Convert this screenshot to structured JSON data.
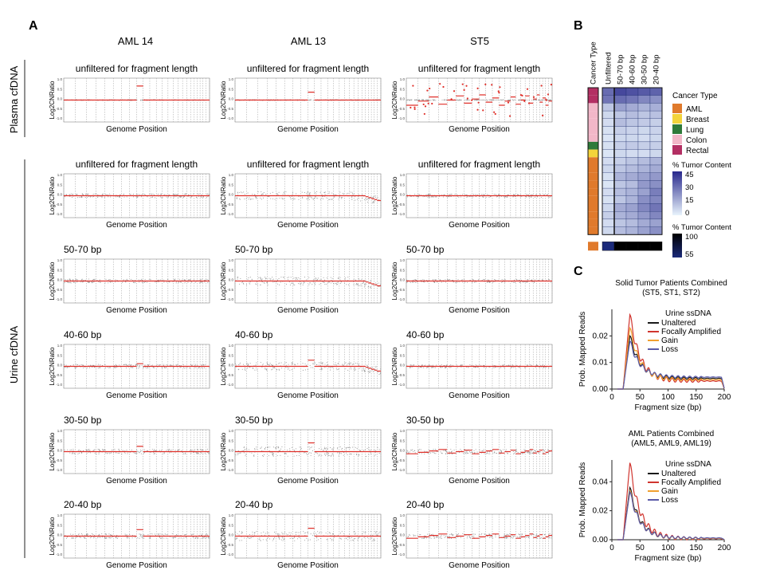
{
  "panel_labels": {
    "A": "A",
    "B": "B",
    "C": "C"
  },
  "panel_a": {
    "columns": [
      "AML 14",
      "AML 13",
      "ST5"
    ],
    "groups": {
      "plasma": "Plasma cfDNA",
      "urine": "Urine cfDNA"
    },
    "ylabel": "Log2CNRatio",
    "xlabel": "Genome Position",
    "yticks": [
      "1.0",
      "0.5",
      "0.0",
      "-0.5",
      "-1.0"
    ],
    "rows": [
      "unfiltered for fragment length",
      "unfiltered for fragment length",
      "50-70 bp",
      "40-60 bp",
      "30-50 bp",
      "20-40 bp"
    ]
  },
  "panel_b": {
    "columns": [
      "Cancer Type",
      "Unfiltered",
      "50-70 bp",
      "40-60 bp",
      "30-50 bp",
      "20-40 bp"
    ],
    "legend_cancer_title": "Cancer Type",
    "cancer_types": [
      {
        "name": "AML",
        "color": "#e07a2c"
      },
      {
        "name": "Breast",
        "color": "#f3d43b"
      },
      {
        "name": "Lung",
        "color": "#2f7a3a"
      },
      {
        "name": "Colon",
        "color": "#f2b7c8"
      },
      {
        "name": "Rectal",
        "color": "#b32f63"
      }
    ],
    "legend_tumor_title": "% Tumor Content",
    "tumor_ticks": [
      "45",
      "30",
      "15",
      "0"
    ],
    "legend_tumor2_title": "% Tumor Content",
    "tumor2_ticks": [
      "100",
      "55"
    ]
  },
  "chart_data": [
    {
      "type": "heatmap",
      "panel": "B",
      "x_categories": [
        "Unfiltered",
        "50-70 bp",
        "40-60 bp",
        "30-50 bp",
        "20-40 bp"
      ],
      "row_cancer_types": [
        "Rectal",
        "Rectal",
        "Colon",
        "Colon",
        "Colon",
        "Colon",
        "Colon",
        "Lung",
        "Breast",
        "AML",
        "AML",
        "AML",
        "AML",
        "AML",
        "AML",
        "AML",
        "AML",
        "AML",
        "AML"
      ],
      "values": [
        [
          30,
          38,
          36,
          34,
          32
        ],
        [
          28,
          30,
          28,
          24,
          22
        ],
        [
          10,
          18,
          16,
          14,
          15
        ],
        [
          6,
          10,
          12,
          10,
          11
        ],
        [
          5,
          12,
          10,
          9,
          8
        ],
        [
          4,
          8,
          7,
          6,
          7
        ],
        [
          3,
          6,
          6,
          5,
          6
        ],
        [
          4,
          8,
          9,
          8,
          8
        ],
        [
          3,
          6,
          5,
          5,
          6
        ],
        [
          5,
          8,
          10,
          12,
          14
        ],
        [
          6,
          10,
          12,
          14,
          16
        ],
        [
          4,
          14,
          16,
          18,
          20
        ],
        [
          3,
          10,
          12,
          20,
          22
        ],
        [
          5,
          12,
          14,
          18,
          26
        ],
        [
          4,
          10,
          14,
          22,
          24
        ],
        [
          6,
          16,
          18,
          24,
          28
        ],
        [
          8,
          14,
          16,
          20,
          24
        ],
        [
          5,
          10,
          12,
          16,
          18
        ],
        [
          6,
          12,
          14,
          18,
          22
        ]
      ],
      "aml_row_cancer_type": "AML",
      "aml_row_values": [
        70,
        100,
        100,
        100,
        100
      ],
      "zlim": [
        0,
        45
      ]
    },
    {
      "type": "line",
      "panel": "C",
      "title": "Solid Tumor Patients Combined",
      "subtitle": "(ST5, ST1, ST2)",
      "legend_title": "Urine ssDNA",
      "xlabel": "Fragment size (bp)",
      "ylabel": "Prob. Mapped Reads",
      "xlim": [
        0,
        200
      ],
      "ylim": [
        0,
        0.03
      ],
      "xticks": [
        0,
        50,
        100,
        150,
        200
      ],
      "yticks": [
        0.0,
        0.01,
        0.02
      ],
      "series": [
        {
          "name": "Unaltered",
          "color": "#1a1a1a",
          "peak": 0.02,
          "tail": 0.004
        },
        {
          "name": "Focally Amplified",
          "color": "#d0352f",
          "peak": 0.028,
          "tail": 0.003
        },
        {
          "name": "Gain",
          "color": "#f0a030",
          "peak": 0.023,
          "tail": 0.0035
        },
        {
          "name": "Loss",
          "color": "#5a5aa8",
          "peak": 0.018,
          "tail": 0.0045
        }
      ]
    },
    {
      "type": "line",
      "panel": "C",
      "title": "AML Patients Combined",
      "subtitle": "(AML5, AML9, AML19)",
      "legend_title": "Urine ssDNA",
      "xlabel": "Fragment size (bp)",
      "ylabel": "Prob. Mapped Reads",
      "xlim": [
        0,
        200
      ],
      "ylim": [
        0,
        0.055
      ],
      "xticks": [
        0,
        50,
        100,
        150,
        200
      ],
      "yticks": [
        0.0,
        0.02,
        0.04
      ],
      "series": [
        {
          "name": "Unaltered",
          "color": "#1a1a1a",
          "peak": 0.036,
          "tail": 0.001
        },
        {
          "name": "Focally Amplified",
          "color": "#d0352f",
          "peak": 0.053,
          "tail": 0.0008
        },
        {
          "name": "Gain",
          "color": "#f0a030",
          "peak": 0.034,
          "tail": 0.001
        },
        {
          "name": "Loss",
          "color": "#5a5aa8",
          "peak": 0.033,
          "tail": 0.0012
        }
      ]
    }
  ]
}
